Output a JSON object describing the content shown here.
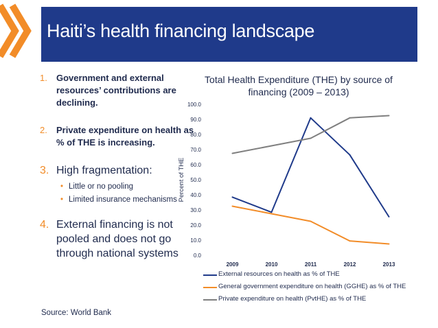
{
  "slide": {
    "title": "Haiti’s health financing landscape",
    "source": "Source: World Bank"
  },
  "points": [
    {
      "num": "1.",
      "text": "Government and external resources’ contributions are declining."
    },
    {
      "num": "2.",
      "text": "Private expenditure on health as % of THE is increasing."
    },
    {
      "num": "3.",
      "text": "High fragmentation:",
      "subs": [
        "Little or no pooling",
        "Limited insurance mechanisms"
      ],
      "bullet": "•"
    },
    {
      "num": "4.",
      "text": "External financing is not pooled and does not go through national systems"
    }
  ],
  "colors": {
    "title_bg": "#1f3a8a",
    "chevron": "#f28c28",
    "text": "#1f2a4d",
    "external": "#1f3a8a",
    "government": "#f28c28",
    "private": "#7f7f7f"
  },
  "chart_data": {
    "type": "line",
    "title": "Total Health Expenditure (THE) by source of financing (2009 – 2013)",
    "ylabel": "Percent of THE",
    "xlabel": "",
    "x": [
      "2009",
      "2010",
      "2011",
      "2012",
      "2013"
    ],
    "ylim": [
      0,
      100
    ],
    "yticks": [
      "0.0",
      "10.0",
      "20.0",
      "30.0",
      "40.0",
      "50.0",
      "60.0",
      "70.0",
      "80.0",
      "90.0",
      "100.0"
    ],
    "grid": false,
    "legend_position": "bottom",
    "series": [
      {
        "name": "External resources on health as % of THE",
        "color": "#1f3a8a",
        "values": [
          38.5,
          28.5,
          91,
          66.5,
          25.5
        ]
      },
      {
        "name": "General government expenditure on health (GGHE) as % of THE",
        "color": "#f28c28",
        "values": [
          32.5,
          27.5,
          22.5,
          9.5,
          7.5
        ]
      },
      {
        "name": "Private expenditure on health (PvtHE) as % of THE",
        "color": "#7f7f7f",
        "values": [
          67.5,
          72.5,
          77.5,
          91,
          92.5
        ]
      }
    ]
  }
}
